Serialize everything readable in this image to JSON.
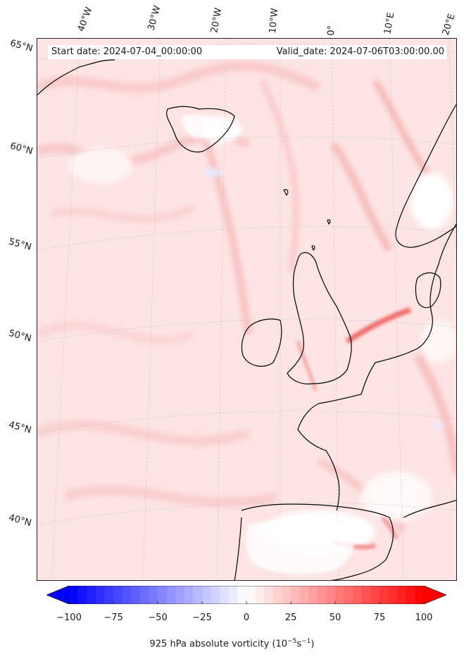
{
  "header": {
    "start_date": "Start date: 2024-07-04_00:00:00",
    "valid_date": "Valid_date: 2024-07-06T03:00:00.00"
  },
  "longitude_labels": [
    "40°W",
    "30°W",
    "20°W",
    "10°W",
    "0°",
    "10°E",
    "20°E"
  ],
  "latitude_labels": [
    "65°N",
    "60°N",
    "55°N",
    "50°N",
    "45°N",
    "40°N"
  ],
  "colorbar": {
    "ticks": [
      "−100",
      "−75",
      "−50",
      "−25",
      "0",
      "25",
      "50",
      "75",
      "100"
    ],
    "min": -100,
    "max": 100,
    "label_main": "925 hPa absolute vorticity (10",
    "label_exp1": "−5",
    "label_mid": "s",
    "label_exp2": "−1",
    "label_end": ")",
    "colors": {
      "negative": "#0000ff",
      "zero": "#ffffff",
      "positive": "#ff0000"
    }
  }
}
